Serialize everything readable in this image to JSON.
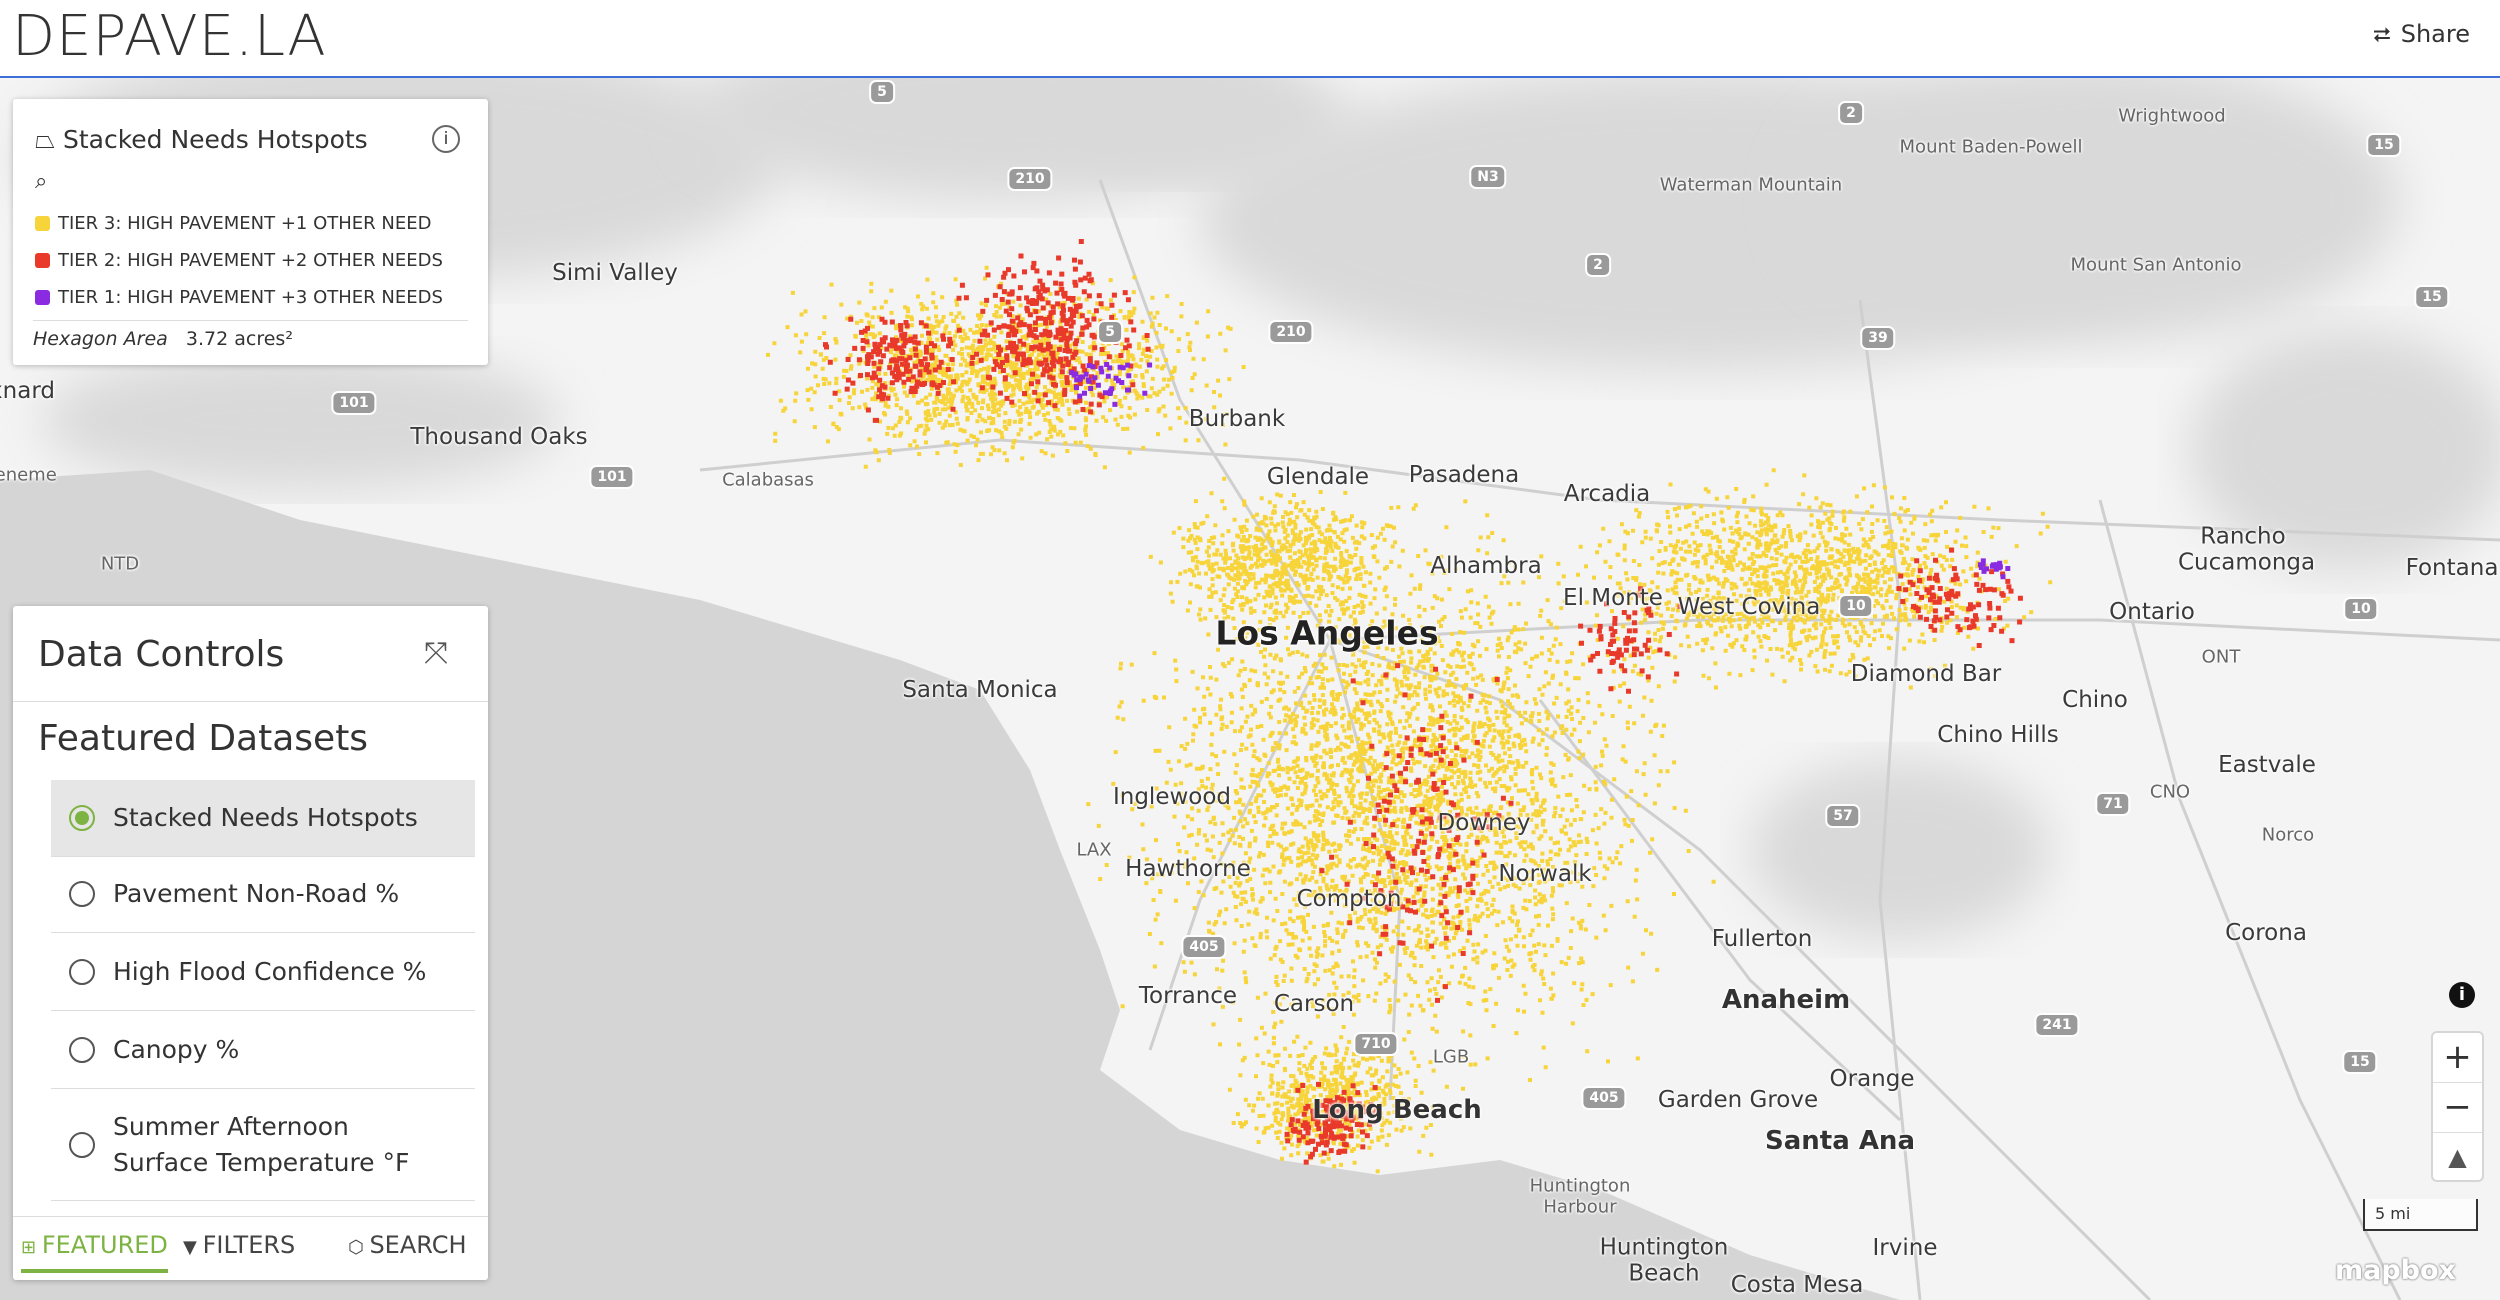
{
  "header": {
    "title": "DEPAVE.LA",
    "share": "Share"
  },
  "legend": {
    "title": "Stacked Needs Hotspots",
    "items": [
      {
        "label": "TIER 3: HIGH PAVEMENT +1 OTHER NEED",
        "color": "#f6d43a"
      },
      {
        "label": "TIER 2: HIGH PAVEMENT +2 OTHER NEEDS",
        "color": "#e8392a"
      },
      {
        "label": "TIER 1: HIGH PAVEMENT +3 OTHER NEEDS",
        "color": "#8a2be2"
      }
    ],
    "hexagon_area_label": "Hexagon Area",
    "hexagon_area_value": "3.72 acres²"
  },
  "controls": {
    "title": "Data Controls",
    "section": "Featured Datasets",
    "options": [
      "Stacked Needs Hotspots",
      "Pavement Non-Road %",
      "High Flood Confidence %",
      "Canopy %",
      "Summer Afternoon Surface Temperature °F"
    ],
    "selected": 0,
    "tabs": [
      "FEATURED",
      "FILTERS",
      "SEARCH"
    ],
    "active_tab": 0
  },
  "map": {
    "places": [
      "Simi Valley",
      "Thousand Oaks",
      "Calabasas",
      "xnard",
      "ueneme",
      "NTD",
      "Burbank",
      "Glendale",
      "Pasadena",
      "Arcadia",
      "Alhambra",
      "El Monte",
      "West Covina",
      "Los Angeles",
      "Santa Monica",
      "Diamond Bar",
      "Chino",
      "Chino Hills",
      "Rancho Cucamonga",
      "Fontana",
      "Ontario",
      "ONT",
      "Eastvale",
      "CNO",
      "Norco",
      "Corona",
      "Inglewood",
      "LAX",
      "Hawthorne",
      "Downey",
      "Norwalk",
      "Compton",
      "Fullerton",
      "Anaheim",
      "Torrance",
      "Carson",
      "LGB",
      "Long Beach",
      "Garden Grove",
      "Orange",
      "Santa Ana",
      "Huntington Harbour",
      "Huntington Beach",
      "Irvine",
      "Costa Mesa",
      "Wrightwood",
      "Mount Baden-Powell",
      "Waterman Mountain",
      "Mount San Antonio"
    ],
    "shields": [
      "5",
      "210",
      "N3",
      "2",
      "2",
      "39",
      "15",
      "15",
      "210",
      "5",
      "101",
      "101",
      "10",
      "10",
      "57",
      "71",
      "241",
      "405",
      "405",
      "710",
      "15"
    ],
    "scale": "5 mi",
    "attribution": "mapbox"
  }
}
